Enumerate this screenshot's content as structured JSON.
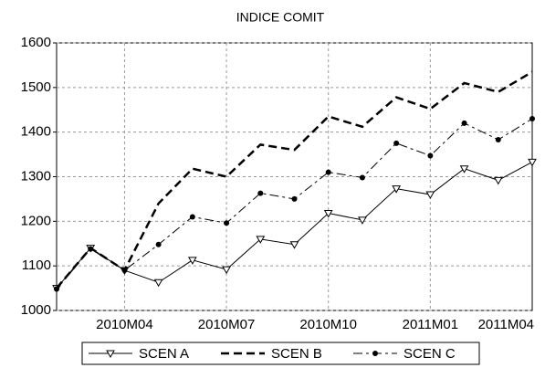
{
  "chart_data": {
    "type": "line",
    "title": "INDICE COMIT",
    "categories": [
      null,
      null,
      "2010M04",
      null,
      null,
      "2010M07",
      null,
      null,
      "2010M10",
      null,
      null,
      "2011M01",
      null,
      null,
      "2011M04"
    ],
    "series": [
      {
        "name": "SCEN A",
        "color": "#000000",
        "style": "solid",
        "marker": "triangle-down",
        "values": [
          1050,
          1140,
          1090,
          1063,
          1113,
          1092,
          1160,
          1148,
          1218,
          1203,
          1273,
          1260,
          1318,
          1292,
          1333
        ]
      },
      {
        "name": "SCEN B",
        "color": "#000000",
        "style": "dash",
        "marker": "none",
        "values": [
          1050,
          1140,
          1090,
          1240,
          1318,
          1300,
          1372,
          1360,
          1435,
          1412,
          1478,
          1452,
          1510,
          1490,
          1535
        ]
      },
      {
        "name": "SCEN C",
        "color": "#000000",
        "style": "dashdot",
        "marker": "circle",
        "values": [
          1048,
          1138,
          1090,
          1148,
          1210,
          1196,
          1263,
          1250,
          1310,
          1298,
          1375,
          1347,
          1420,
          1383,
          1430
        ]
      }
    ],
    "ylim": [
      1000,
      1600
    ],
    "yticks": [
      1000,
      1100,
      1200,
      1300,
      1400,
      1500,
      1600
    ],
    "grid": true,
    "legend": "bottom"
  }
}
